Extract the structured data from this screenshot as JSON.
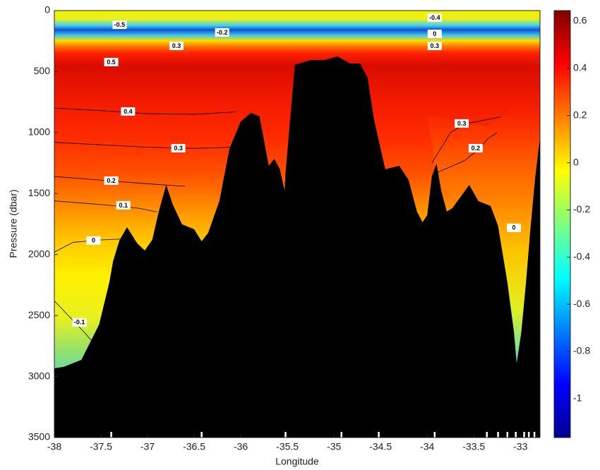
{
  "chart_data": {
    "type": "contour",
    "x_label": "Longitude",
    "y_label": "Pressure (dbar)",
    "xlim": [
      -38,
      -32.79
    ],
    "xticks": [
      -38,
      -37.5,
      -37,
      -36.5,
      -36,
      -35.5,
      -35,
      -34.5,
      -34,
      -33.5,
      -33
    ],
    "ylim": [
      0,
      3500
    ],
    "yticks": [
      0,
      500,
      1000,
      1500,
      2000,
      2500,
      3000,
      3500
    ],
    "y_inverted": true,
    "colormap": "jet",
    "clim": [
      -1.165,
      0.645
    ],
    "cticks": [
      0.6,
      0.4,
      0.2,
      0,
      -0.2,
      -0.4,
      -0.6,
      -0.8,
      -1
    ],
    "bottom": {
      "lon": [
        -38,
        -37.9,
        -37.71,
        -37.52,
        -37.41,
        -37.37,
        -37.3,
        -37.22,
        -37.11,
        -37.03,
        -36.95,
        -36.88,
        -36.8,
        -36.73,
        -36.63,
        -36.5,
        -36.42,
        -36.35,
        -36.23,
        -36.12,
        -36.0,
        -35.89,
        -35.8,
        -35.77,
        -35.7,
        -35.64,
        -35.58,
        -35.53,
        -35.52,
        -35.42,
        -35.25,
        -35.1,
        -34.96,
        -34.83,
        -34.72,
        -34.64,
        -34.57,
        -34.45,
        -34.3,
        -34.2,
        -34.11,
        -34.05,
        -34.0,
        -33.95,
        -33.9,
        -33.85,
        -33.79,
        -33.73,
        -33.62,
        -33.55,
        -33.45,
        -33.32,
        -33.24,
        -33.14,
        -33.07,
        -33.04,
        -32.99,
        -32.94,
        -32.89,
        -32.84,
        -32.79
      ],
      "pressure": [
        2932,
        2921,
        2863,
        2574,
        2227,
        2053,
        1880,
        1776,
        1909,
        1966,
        1880,
        1648,
        1429,
        1590,
        1752,
        1793,
        1891,
        1822,
        1562,
        1128,
        908,
        838,
        867,
        983,
        1272,
        1215,
        1301,
        1475,
        1330,
        445,
        405,
        405,
        376,
        434,
        434,
        549,
        896,
        1301,
        1272,
        1388,
        1648,
        1735,
        1677,
        1359,
        1255,
        1475,
        1648,
        1619,
        1504,
        1429,
        1562,
        1602,
        1764,
        2227,
        2632,
        2892,
        2632,
        2227,
        1764,
        1359,
        1041
      ]
    },
    "stations": [
      -37.39,
      -36.42,
      -35.52,
      -34.92,
      -34.52,
      -33.92,
      -33.36,
      -33.24,
      -33.14,
      -33.05,
      -32.96,
      -32.91,
      -32.85
    ],
    "contours": [
      {
        "x": [
          -38,
          -37.5,
          -37,
          -36.5,
          -36.05
        ],
        "y": [
          800,
          820,
          845,
          850,
          830
        ]
      },
      {
        "x": [
          -38,
          -37.5,
          -37,
          -36.5,
          -36.1
        ],
        "y": [
          1080,
          1100,
          1120,
          1130,
          1120
        ]
      },
      {
        "x": [
          -38,
          -37.5,
          -37,
          -36.6
        ],
        "y": [
          1360,
          1390,
          1420,
          1440
        ]
      },
      {
        "x": [
          -38,
          -37.5,
          -37.1,
          -36.9
        ],
        "y": [
          1560,
          1590,
          1620,
          1650
        ]
      },
      {
        "x": [
          -38,
          -37.8,
          -37.5,
          -37.2
        ],
        "y": [
          1980,
          1900,
          1880,
          1870
        ]
      },
      {
        "x": [
          -38,
          -37.85,
          -37.7,
          -37.55
        ],
        "y": [
          2380,
          2500,
          2620,
          2750
        ]
      },
      {
        "x": [
          -33.95,
          -33.75,
          -33.6,
          -33.4,
          -33.2
        ],
        "y": [
          1250,
          1000,
          930,
          900,
          870
        ]
      },
      {
        "x": [
          -33.9,
          -33.6,
          -33.45,
          -33.35,
          -33.25
        ],
        "y": [
          1330,
          1230,
          1140,
          1050,
          1000
        ]
      }
    ],
    "contour_labels": [
      {
        "value": -0.5,
        "x": -37.3,
        "y": 116
      },
      {
        "value": -0.4,
        "x": -33.92,
        "y": 58
      },
      {
        "value": -0.2,
        "x": -36.2,
        "y": 179
      },
      {
        "value": 0,
        "x": -33.92,
        "y": 191
      },
      {
        "value": 0.3,
        "x": -36.69,
        "y": 289
      },
      {
        "value": 0.3,
        "x": -33.92,
        "y": 289
      },
      {
        "value": 0.5,
        "x": -37.39,
        "y": 422
      },
      {
        "value": 0.4,
        "x": -37.21,
        "y": 827
      },
      {
        "value": 0.3,
        "x": -33.63,
        "y": 925
      },
      {
        "value": 0.3,
        "x": -36.67,
        "y": 1128
      },
      {
        "value": 0.2,
        "x": -33.48,
        "y": 1128
      },
      {
        "value": 0.2,
        "x": -37.39,
        "y": 1394
      },
      {
        "value": 0.1,
        "x": -37.26,
        "y": 1596
      },
      {
        "value": 0,
        "x": -37.58,
        "y": 1885
      },
      {
        "value": 0,
        "x": -33.07,
        "y": 1781
      },
      {
        "value": -0.1,
        "x": -37.73,
        "y": 2556
      }
    ]
  }
}
